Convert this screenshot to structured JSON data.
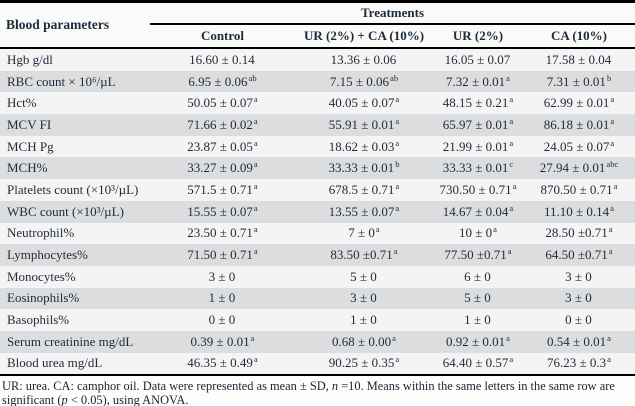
{
  "colors": {
    "ink": "#1e2b3c",
    "row_shade": "#dcddde",
    "row_light": "#f3f4f3",
    "rule": "#000000"
  },
  "table": {
    "corner_header": "Blood parameters",
    "group_header": "Treatments",
    "columns": [
      "Control",
      "UR (2%) + CA (10%)",
      "UR (2%)",
      "CA (10%)"
    ],
    "rows": [
      {
        "param": "Hgb g/dl",
        "cells": [
          {
            "v": "16.60 ± 0.14",
            "s": ""
          },
          {
            "v": "13.36 ± 0.06",
            "s": ""
          },
          {
            "v": "16.05 ± 0.07",
            "s": ""
          },
          {
            "v": "17.58 ± 0.04",
            "s": ""
          }
        ]
      },
      {
        "param": "RBC count × 10⁶/µL",
        "cells": [
          {
            "v": "6.95 ± 0.06",
            "s": "ab"
          },
          {
            "v": "7.15 ± 0.06",
            "s": "ab"
          },
          {
            "v": "7.32 ± 0.01",
            "s": "a"
          },
          {
            "v": "7.31 ± 0.01",
            "s": "b"
          }
        ]
      },
      {
        "param": "Hct%",
        "cells": [
          {
            "v": "50.05 ± 0.07",
            "s": "a"
          },
          {
            "v": "40.05 ± 0.07",
            "s": "a"
          },
          {
            "v": "48.15 ± 0.21",
            "s": "a"
          },
          {
            "v": "62.99 ± 0.01",
            "s": "a"
          }
        ]
      },
      {
        "param": "MCV FI",
        "cells": [
          {
            "v": "71.66 ± 0.02",
            "s": "a"
          },
          {
            "v": "55.91 ± 0.01",
            "s": "a"
          },
          {
            "v": "65.97 ± 0.01",
            "s": "a"
          },
          {
            "v": "86.18 ± 0.01",
            "s": "a"
          }
        ]
      },
      {
        "param": "MCH Pg",
        "cells": [
          {
            "v": "23.87 ± 0.05",
            "s": "a"
          },
          {
            "v": "18.62 ± 0.03",
            "s": "a"
          },
          {
            "v": "21.99 ± 0.01",
            "s": "a"
          },
          {
            "v": "24.05 ± 0.07",
            "s": "a"
          }
        ]
      },
      {
        "param": "MCH%",
        "cells": [
          {
            "v": "33.27 ± 0.09",
            "s": "a"
          },
          {
            "v": "33.33 ± 0.01",
            "s": "b"
          },
          {
            "v": "33.33 ± 0.01",
            "s": "c"
          },
          {
            "v": "27.94 ± 0.01",
            "s": "abc"
          }
        ]
      },
      {
        "param": "Platelets count (×10³/µL)",
        "cells": [
          {
            "v": "571.5 ± 0.71",
            "s": "a"
          },
          {
            "v": "678.5 ± 0.71",
            "s": "a"
          },
          {
            "v": "730.50 ± 0.71",
            "s": "a"
          },
          {
            "v": "870.50 ± 0.71",
            "s": "a"
          }
        ]
      },
      {
        "param": "WBC count (×10³/µL)",
        "cells": [
          {
            "v": "15.55 ± 0.07",
            "s": "a"
          },
          {
            "v": "13.55 ± 0.07",
            "s": "a"
          },
          {
            "v": "14.67 ± 0.04",
            "s": "a"
          },
          {
            "v": "11.10 ± 0.14",
            "s": "a"
          }
        ]
      },
      {
        "param": "Neutrophil%",
        "cells": [
          {
            "v": "23.50 ± 0.71",
            "s": "a"
          },
          {
            "v": "7 ± 0",
            "s": "a"
          },
          {
            "v": "10 ± 0",
            "s": "a"
          },
          {
            "v": "28.50 ±0.71",
            "s": "a"
          }
        ]
      },
      {
        "param": "Lymphocytes%",
        "cells": [
          {
            "v": "71.50 ± 0.71",
            "s": "a"
          },
          {
            "v": "83.50 ±0.71",
            "s": "a"
          },
          {
            "v": "77.50 ±0.71",
            "s": "a"
          },
          {
            "v": "64.50 ±0.71",
            "s": "a"
          }
        ]
      },
      {
        "param": "Monocytes%",
        "cells": [
          {
            "v": "3 ± 0",
            "s": ""
          },
          {
            "v": "5 ± 0",
            "s": ""
          },
          {
            "v": "6 ± 0",
            "s": ""
          },
          {
            "v": "3 ± 0",
            "s": ""
          }
        ]
      },
      {
        "param": "Eosinophils%",
        "cells": [
          {
            "v": "1 ± 0",
            "s": ""
          },
          {
            "v": "3 ± 0",
            "s": ""
          },
          {
            "v": "5 ± 0",
            "s": ""
          },
          {
            "v": "3 ± 0",
            "s": ""
          }
        ]
      },
      {
        "param": "Basophils%",
        "cells": [
          {
            "v": "0 ± 0",
            "s": ""
          },
          {
            "v": "1 ± 0",
            "s": ""
          },
          {
            "v": "1 ± 0",
            "s": ""
          },
          {
            "v": "0 ± 0",
            "s": ""
          }
        ]
      },
      {
        "param": "Serum creatinine mg/dL",
        "cells": [
          {
            "v": "0.39 ± 0.01",
            "s": "a"
          },
          {
            "v": "0.68 ± 0.00",
            "s": "a"
          },
          {
            "v": "0.92 ± 0.01",
            "s": "a"
          },
          {
            "v": "0.54 ± 0.01",
            "s": "a"
          }
        ]
      },
      {
        "param": "Blood urea mg/dL",
        "cells": [
          {
            "v": "46.35 ± 0.49",
            "s": "a"
          },
          {
            "v": "90.25 ± 0.35",
            "s": "a"
          },
          {
            "v": "64.40 ± 0.57",
            "s": "a"
          },
          {
            "v": "76.23 ± 0.3",
            "s": "a"
          }
        ]
      }
    ]
  },
  "footnote": {
    "part1": "UR: urea. CA: camphor oil. Data were represented as mean ± SD, ",
    "var1": "n",
    "part2": " =10. Means within the same letters in the same row are significant (",
    "var2": "p",
    "part3": " < 0.05), using ANOVA."
  }
}
